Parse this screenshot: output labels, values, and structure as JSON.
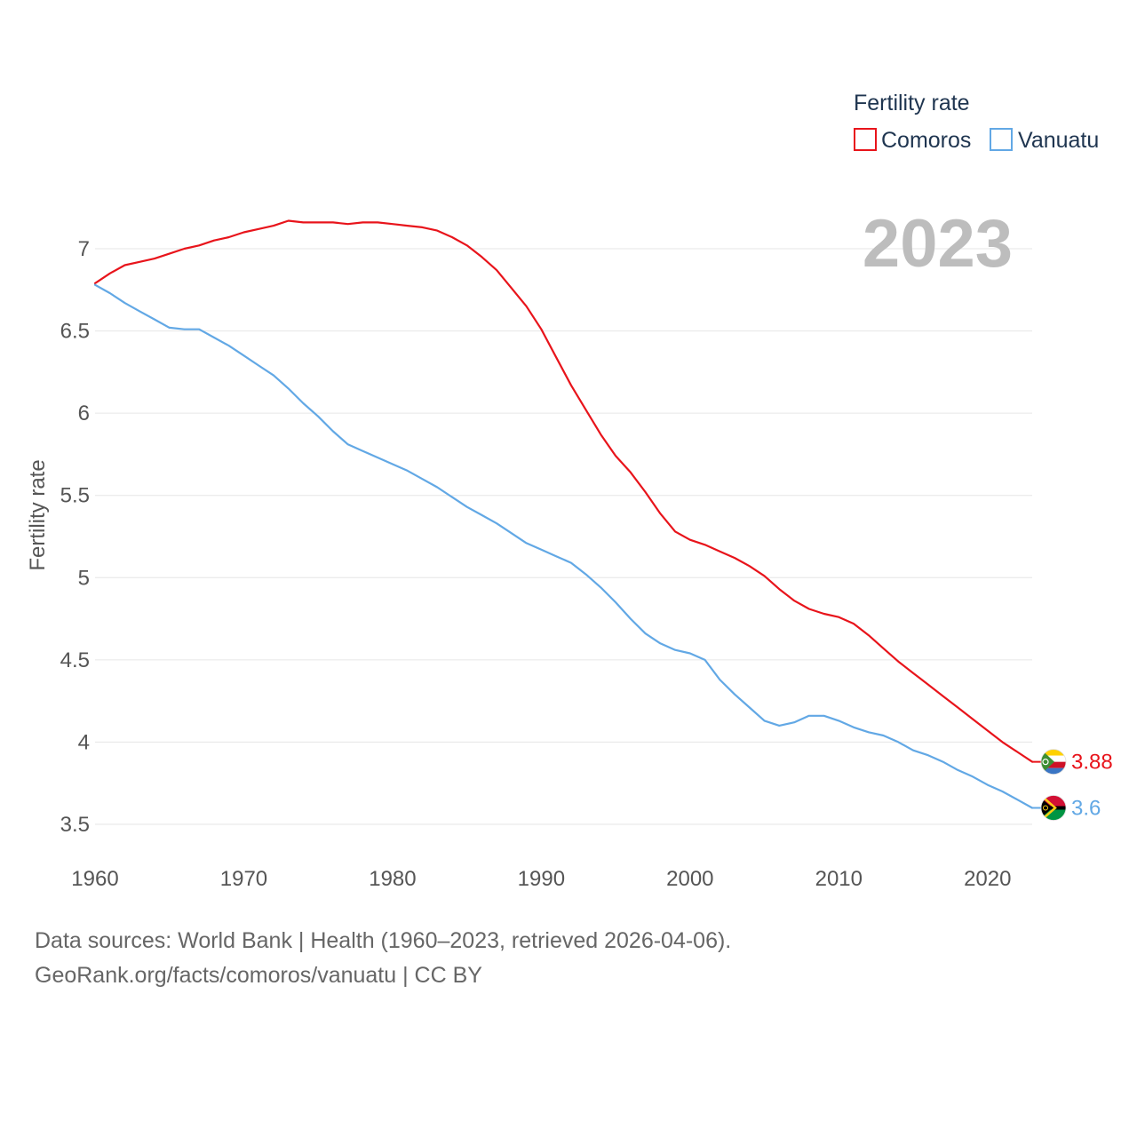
{
  "chart_data": {
    "type": "line",
    "title": "",
    "current_year": "2023",
    "xlabel": "",
    "ylabel": "Fertility rate",
    "xlim": [
      1960,
      2023
    ],
    "ylim": [
      3.3,
      7.3
    ],
    "x_ticks": [
      1960,
      1970,
      1980,
      1990,
      2000,
      2010,
      2020
    ],
    "y_ticks": [
      3.5,
      4,
      4.5,
      5,
      5.5,
      6,
      6.5,
      7
    ],
    "grid": true,
    "legend": {
      "title": "Fertility rate",
      "position": "top-right"
    },
    "x": [
      1960,
      1961,
      1962,
      1963,
      1964,
      1965,
      1966,
      1967,
      1968,
      1969,
      1970,
      1971,
      1972,
      1973,
      1974,
      1975,
      1976,
      1977,
      1978,
      1979,
      1980,
      1981,
      1982,
      1983,
      1984,
      1985,
      1986,
      1987,
      1988,
      1989,
      1990,
      1991,
      1992,
      1993,
      1994,
      1995,
      1996,
      1997,
      1998,
      1999,
      2000,
      2001,
      2002,
      2003,
      2004,
      2005,
      2006,
      2007,
      2008,
      2009,
      2010,
      2011,
      2012,
      2013,
      2014,
      2015,
      2016,
      2017,
      2018,
      2019,
      2020,
      2021,
      2022,
      2023
    ],
    "series": [
      {
        "name": "Comoros",
        "color": "#e8141b",
        "end_label": "3.88",
        "flag": "comoros-flag",
        "values": [
          6.79,
          6.85,
          6.9,
          6.92,
          6.94,
          6.97,
          7.0,
          7.02,
          7.05,
          7.07,
          7.1,
          7.12,
          7.14,
          7.17,
          7.16,
          7.16,
          7.16,
          7.15,
          7.16,
          7.16,
          7.15,
          7.14,
          7.13,
          7.11,
          7.07,
          7.02,
          6.95,
          6.87,
          6.76,
          6.65,
          6.51,
          6.34,
          6.17,
          6.02,
          5.87,
          5.74,
          5.64,
          5.52,
          5.39,
          5.28,
          5.23,
          5.2,
          5.16,
          5.12,
          5.07,
          5.01,
          4.93,
          4.86,
          4.81,
          4.78,
          4.76,
          4.72,
          4.65,
          4.57,
          4.49,
          4.42,
          4.35,
          4.28,
          4.21,
          4.14,
          4.07,
          4.0,
          3.94,
          3.88
        ]
      },
      {
        "name": "Vanuatu",
        "color": "#62a8e5",
        "end_label": "3.6",
        "flag": "vanuatu-flag",
        "values": [
          6.78,
          6.73,
          6.67,
          6.62,
          6.57,
          6.52,
          6.51,
          6.51,
          6.46,
          6.41,
          6.35,
          6.29,
          6.23,
          6.15,
          6.06,
          5.98,
          5.89,
          5.81,
          5.77,
          5.73,
          5.69,
          5.65,
          5.6,
          5.55,
          5.49,
          5.43,
          5.38,
          5.33,
          5.27,
          5.21,
          5.17,
          5.13,
          5.09,
          5.02,
          4.94,
          4.85,
          4.75,
          4.66,
          4.6,
          4.56,
          4.54,
          4.5,
          4.38,
          4.29,
          4.21,
          4.13,
          4.1,
          4.12,
          4.16,
          4.16,
          4.13,
          4.09,
          4.06,
          4.04,
          4.0,
          3.95,
          3.92,
          3.88,
          3.83,
          3.79,
          3.74,
          3.7,
          3.65,
          3.6
        ]
      }
    ]
  },
  "source": {
    "line1": "Data sources: World Bank | Health (1960–2023, retrieved 2026-04-06).",
    "line2": "GeoRank.org/facts/comoros/vanuatu | CC BY"
  }
}
